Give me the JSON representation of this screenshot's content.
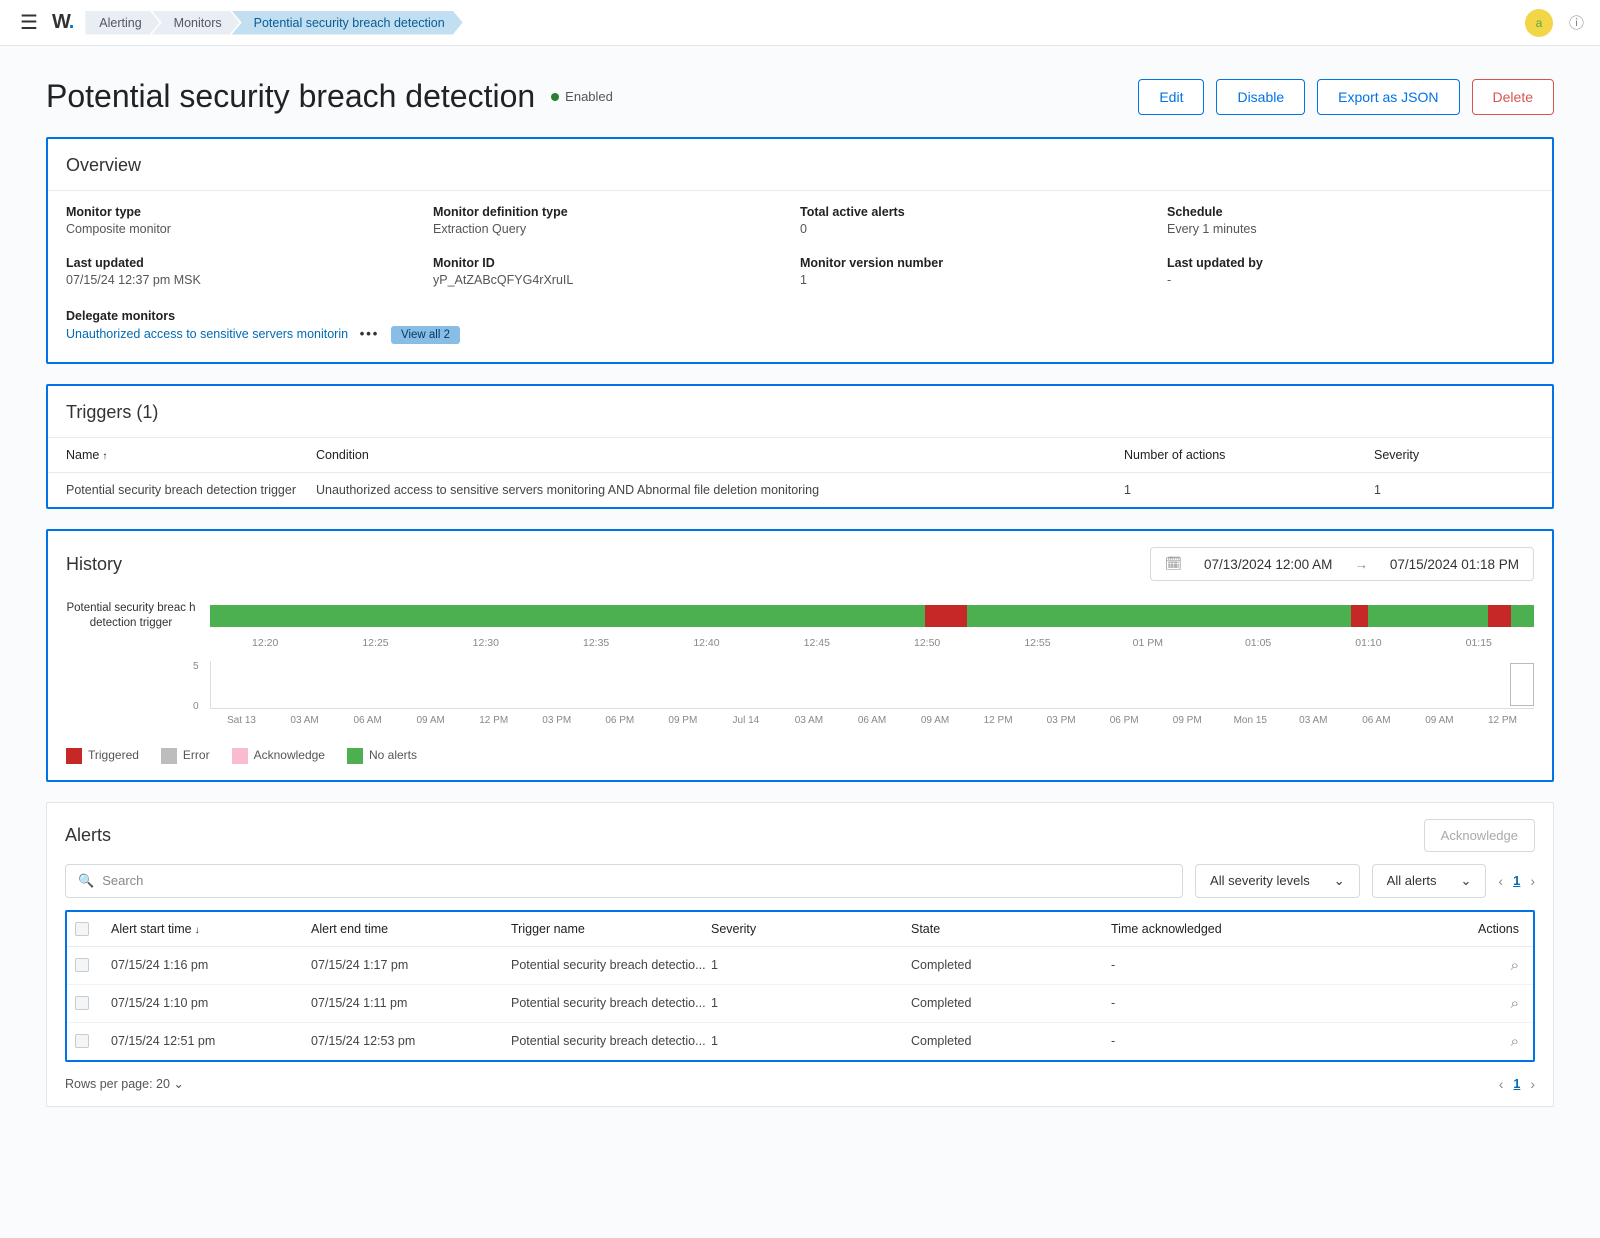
{
  "topbar": {
    "logo": "W",
    "breadcrumbs": [
      "Alerting",
      "Monitors",
      "Potential security breach detection"
    ],
    "avatar_letter": "a"
  },
  "header": {
    "title": "Potential security breach detection",
    "status_label": "Enabled",
    "status_color": "#2e7d32",
    "actions": {
      "edit": "Edit",
      "disable": "Disable",
      "export": "Export as JSON",
      "delete": "Delete"
    }
  },
  "overview": {
    "title": "Overview",
    "fields": {
      "monitor_type": {
        "label": "Monitor type",
        "value": "Composite monitor"
      },
      "definition_type": {
        "label": "Monitor definition type",
        "value": "Extraction Query"
      },
      "total_active": {
        "label": "Total active alerts",
        "value": "0"
      },
      "schedule": {
        "label": "Schedule",
        "value": "Every 1 minutes"
      },
      "last_updated": {
        "label": "Last updated",
        "value": "07/15/24 12:37 pm MSK"
      },
      "monitor_id": {
        "label": "Monitor ID",
        "value": "yP_AtZABcQFYG4rXruIL"
      },
      "version": {
        "label": "Monitor version number",
        "value": "1"
      },
      "updated_by": {
        "label": "Last updated by",
        "value": "-"
      }
    },
    "delegate": {
      "label": "Delegate monitors",
      "link_text": "Unauthorized access to sensitive servers monitorin",
      "view_all": "View all 2"
    }
  },
  "triggers": {
    "title": "Triggers (1)",
    "columns": {
      "name": "Name",
      "condition": "Condition",
      "actions": "Number of actions",
      "severity": "Severity"
    },
    "rows": [
      {
        "name": "Potential security breach detection trigger",
        "condition": "Unauthorized access to sensitive servers monitoring AND Abnormal file deletion monitoring",
        "actions": "1",
        "severity": "1"
      }
    ]
  },
  "history": {
    "title": "History",
    "date_from": "07/13/2024 12:00 AM",
    "date_to": "07/15/2024 01:18 PM",
    "timeline_label": "Potential security breac h detection trigger",
    "timeline_bg": "#4caf50",
    "red_color": "#c62828",
    "segments": [
      {
        "left_pct": 54.0,
        "width_pct": 3.2
      },
      {
        "left_pct": 86.2,
        "width_pct": 1.3
      },
      {
        "left_pct": 96.5,
        "width_pct": 1.8
      }
    ],
    "axis1": [
      "12:20",
      "12:25",
      "12:30",
      "12:35",
      "12:40",
      "12:45",
      "12:50",
      "12:55",
      "01 PM",
      "01:05",
      "01:10",
      "01:15"
    ],
    "spark_y": [
      "5",
      "0"
    ],
    "axis2": [
      "Sat 13",
      "03 AM",
      "06 AM",
      "09 AM",
      "12 PM",
      "03 PM",
      "06 PM",
      "09 PM",
      "Jul 14",
      "03 AM",
      "06 AM",
      "09 AM",
      "12 PM",
      "03 PM",
      "06 PM",
      "09 PM",
      "Mon 15",
      "03 AM",
      "06 AM",
      "09 AM",
      "12 PM"
    ],
    "legend": [
      {
        "label": "Triggered",
        "color": "#c62828"
      },
      {
        "label": "Error",
        "color": "#bdbdbd"
      },
      {
        "label": "Acknowledge",
        "color": "#f8bbd0"
      },
      {
        "label": "No alerts",
        "color": "#4caf50"
      }
    ]
  },
  "alerts": {
    "title": "Alerts",
    "ack_button": "Acknowledge",
    "search_placeholder": "Search",
    "filter_severity": "All severity levels",
    "filter_state": "All alerts",
    "page": "1",
    "columns": {
      "start": "Alert start time",
      "end": "Alert end time",
      "trigger": "Trigger name",
      "severity": "Severity",
      "state": "State",
      "ack": "Time acknowledged",
      "actions": "Actions"
    },
    "rows": [
      {
        "start": "07/15/24 1:16 pm",
        "end": "07/15/24 1:17 pm",
        "trigger": "Potential security breach detectio...",
        "severity": "1",
        "state": "Completed",
        "ack": "-"
      },
      {
        "start": "07/15/24 1:10 pm",
        "end": "07/15/24 1:11 pm",
        "trigger": "Potential security breach detectio...",
        "severity": "1",
        "state": "Completed",
        "ack": "-"
      },
      {
        "start": "07/15/24 12:51 pm",
        "end": "07/15/24 12:53 pm",
        "trigger": "Potential security breach detectio...",
        "severity": "1",
        "state": "Completed",
        "ack": "-"
      }
    ],
    "rows_per_page_label": "Rows per page: 20",
    "footer_page": "1"
  },
  "colors": {
    "panel_border": "#0073e6",
    "link": "#006bb4",
    "danger": "#d9534f"
  }
}
